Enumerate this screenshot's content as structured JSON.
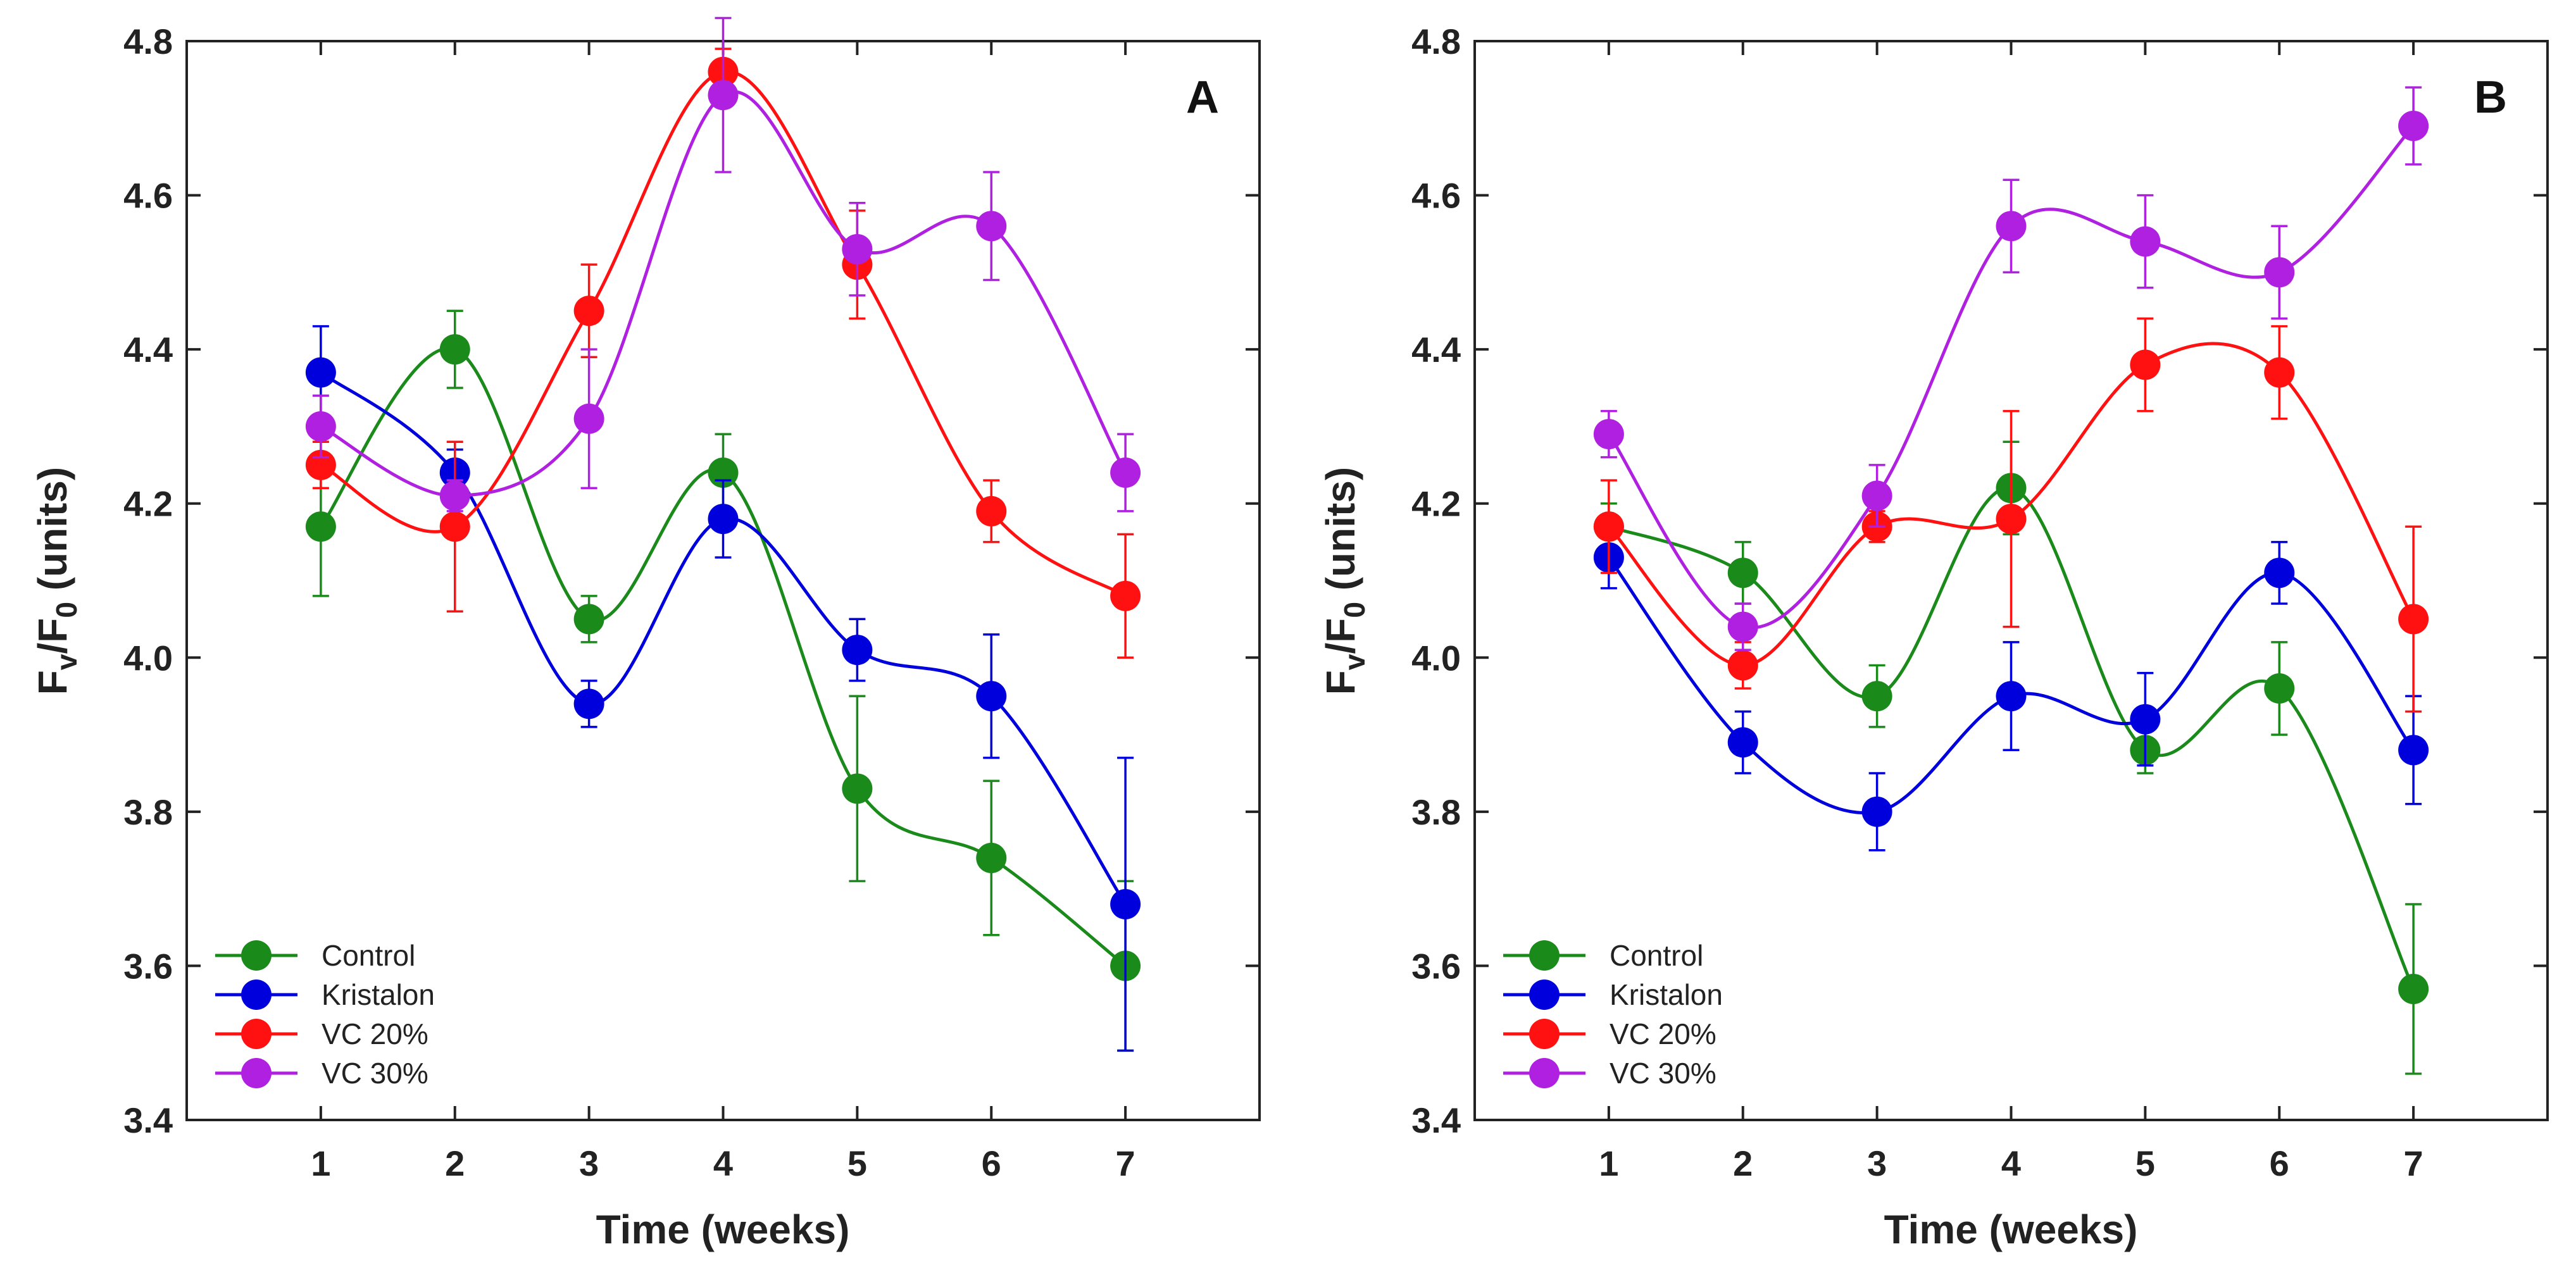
{
  "chart_data": [
    {
      "type": "line",
      "panel": "A",
      "title": "",
      "xlabel": "Time (weeks)",
      "ylabel": "Fv/F0 (units)",
      "ylabel_main": "F",
      "ylabel_sub1": "v",
      "ylabel_sep": "/F",
      "ylabel_sub2": "0",
      "ylabel_tail": " (units)",
      "xlim": [
        0,
        8
      ],
      "ylim": [
        3.4,
        4.8
      ],
      "x": [
        1,
        2,
        3,
        4,
        5,
        6,
        7
      ],
      "xticks": [
        "1",
        "2",
        "3",
        "4",
        "5",
        "6",
        "7"
      ],
      "yticks": [
        "3.4",
        "3.6",
        "3.8",
        "4.0",
        "4.2",
        "4.4",
        "4.6",
        "4.8"
      ],
      "legend_position": "bottom-left",
      "series": [
        {
          "name": "Control",
          "color": "#1a8a1a",
          "values": [
            4.17,
            4.4,
            4.05,
            4.24,
            3.83,
            3.74,
            3.6
          ],
          "errors": [
            0.09,
            0.05,
            0.03,
            0.05,
            0.12,
            0.1,
            0.11
          ]
        },
        {
          "name": "Kristalon",
          "color": "#0000dd",
          "values": [
            4.37,
            4.24,
            3.94,
            4.18,
            4.01,
            3.95,
            3.68
          ],
          "errors": [
            0.06,
            0.03,
            0.03,
            0.05,
            0.04,
            0.08,
            0.19
          ]
        },
        {
          "name": "VC 20%",
          "color": "#ff1111",
          "values": [
            4.25,
            4.17,
            4.45,
            4.76,
            4.51,
            4.19,
            4.08
          ],
          "errors": [
            0.03,
            0.11,
            0.06,
            0.03,
            0.07,
            0.04,
            0.08
          ]
        },
        {
          "name": "VC 30%",
          "color": "#b020e0",
          "values": [
            4.3,
            4.21,
            4.31,
            4.73,
            4.53,
            4.56,
            4.24
          ],
          "errors": [
            0.04,
            0.02,
            0.09,
            0.1,
            0.06,
            0.07,
            0.05
          ]
        }
      ]
    },
    {
      "type": "line",
      "panel": "B",
      "title": "",
      "xlabel": "Time (weeks)",
      "ylabel": "Fv/F0 (units)",
      "ylabel_main": "F",
      "ylabel_sub1": "v",
      "ylabel_sep": "/F",
      "ylabel_sub2": "0",
      "ylabel_tail": " (units)",
      "xlim": [
        0,
        8
      ],
      "ylim": [
        3.4,
        4.8
      ],
      "x": [
        1,
        2,
        3,
        4,
        5,
        6,
        7
      ],
      "xticks": [
        "1",
        "2",
        "3",
        "4",
        "5",
        "6",
        "7"
      ],
      "yticks": [
        "3.4",
        "3.6",
        "3.8",
        "4.0",
        "4.2",
        "4.4",
        "4.6",
        "4.8"
      ],
      "legend_position": "bottom-left",
      "series": [
        {
          "name": "Control",
          "color": "#1a8a1a",
          "values": [
            4.17,
            4.11,
            3.95,
            4.22,
            3.88,
            3.96,
            3.57
          ],
          "errors": [
            0.03,
            0.04,
            0.04,
            0.06,
            0.03,
            0.06,
            0.11
          ]
        },
        {
          "name": "Kristalon",
          "color": "#0000dd",
          "values": [
            4.13,
            3.89,
            3.8,
            3.95,
            3.92,
            4.11,
            3.88
          ],
          "errors": [
            0.04,
            0.04,
            0.05,
            0.07,
            0.06,
            0.04,
            0.07
          ]
        },
        {
          "name": "VC 20%",
          "color": "#ff1111",
          "values": [
            4.17,
            3.99,
            4.17,
            4.18,
            4.38,
            4.37,
            4.05
          ],
          "errors": [
            0.06,
            0.03,
            0.02,
            0.14,
            0.06,
            0.06,
            0.12
          ]
        },
        {
          "name": "VC 30%",
          "color": "#b020e0",
          "values": [
            4.29,
            4.04,
            4.21,
            4.56,
            4.54,
            4.5,
            4.69
          ],
          "errors": [
            0.03,
            0.03,
            0.04,
            0.06,
            0.06,
            0.06,
            0.05
          ]
        }
      ]
    }
  ]
}
